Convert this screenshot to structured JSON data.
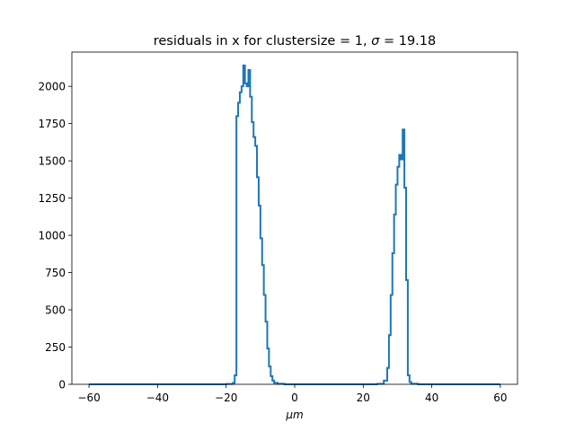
{
  "chart_data": {
    "type": "histogram",
    "title": "residuals in x for clustersize = 1, σ = 19.18",
    "title_parts": {
      "prefix": "residuals in x for clustersize = 1, ",
      "sigma_symbol": "σ",
      "suffix": " = 19.18"
    },
    "xlabel": "μm",
    "xlabel_parts": {
      "mu": "μ",
      "m": "m"
    },
    "ylabel": "",
    "xlim": [
      -65,
      65
    ],
    "ylim": [
      0,
      2230
    ],
    "xticks": [
      -60,
      -40,
      -20,
      0,
      20,
      40,
      60
    ],
    "xtick_labels": [
      "−60",
      "−40",
      "−20",
      "0",
      "20",
      "40",
      "60"
    ],
    "yticks": [
      0,
      250,
      500,
      750,
      1000,
      1250,
      1500,
      1750,
      2000
    ],
    "ytick_labels": [
      "0",
      "250",
      "500",
      "750",
      "1000",
      "1250",
      "1500",
      "1750",
      "2000"
    ],
    "grid": false,
    "legend": "none",
    "line_color": "#1f77b4",
    "histtype": "step",
    "series": [
      {
        "bins": [
          [
            -60,
            -20,
            0
          ],
          [
            -20,
            -18,
            2
          ],
          [
            -18,
            -17.5,
            10
          ],
          [
            -17.5,
            -17,
            60
          ],
          [
            -17,
            -16.5,
            1800
          ],
          [
            -16.5,
            -16,
            1890
          ],
          [
            -16,
            -15.5,
            1960
          ],
          [
            -15.5,
            -15,
            2000
          ],
          [
            -15,
            -14.5,
            2140
          ],
          [
            -14.5,
            -14,
            2020
          ],
          [
            -14,
            -13.5,
            2000
          ],
          [
            -13.5,
            -13,
            2110
          ],
          [
            -13,
            -12.5,
            1930
          ],
          [
            -12.5,
            -12,
            1760
          ],
          [
            -12,
            -11.5,
            1660
          ],
          [
            -11.5,
            -11,
            1600
          ],
          [
            -11,
            -10.5,
            1390
          ],
          [
            -10.5,
            -10,
            1200
          ],
          [
            -10,
            -9.5,
            980
          ],
          [
            -9.5,
            -9,
            800
          ],
          [
            -9,
            -8.5,
            600
          ],
          [
            -8.5,
            -8,
            420
          ],
          [
            -8,
            -7.5,
            240
          ],
          [
            -7.5,
            -7,
            120
          ],
          [
            -7,
            -6.5,
            55
          ],
          [
            -6.5,
            -6,
            25
          ],
          [
            -6,
            -5,
            10
          ],
          [
            -5,
            -3,
            4
          ],
          [
            -3,
            24,
            0
          ],
          [
            24,
            26,
            3
          ],
          [
            26,
            27,
            25
          ],
          [
            27,
            27.5,
            110
          ],
          [
            27.5,
            28,
            330
          ],
          [
            28,
            28.5,
            600
          ],
          [
            28.5,
            29,
            880
          ],
          [
            29,
            29.5,
            1140
          ],
          [
            29.5,
            30,
            1340
          ],
          [
            30,
            30.5,
            1460
          ],
          [
            30.5,
            31,
            1540
          ],
          [
            31,
            31.5,
            1510
          ],
          [
            31.5,
            32,
            1710
          ],
          [
            32,
            32.5,
            1320
          ],
          [
            32.5,
            33,
            700
          ],
          [
            33,
            33.5,
            60
          ],
          [
            33.5,
            34,
            15
          ],
          [
            34,
            36,
            4
          ],
          [
            36,
            60,
            0
          ]
        ]
      }
    ]
  }
}
